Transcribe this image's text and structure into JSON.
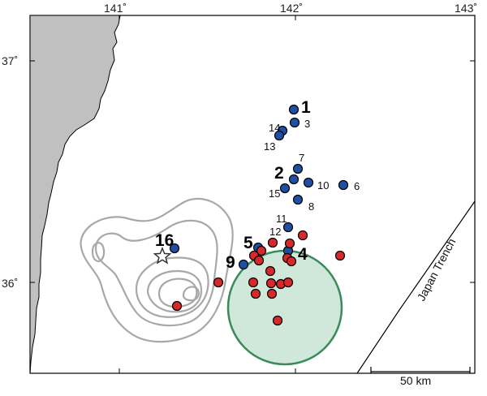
{
  "map": {
    "lon_ticks": [
      "141˚",
      "142˚",
      "143˚"
    ],
    "lat_ticks": [
      "37˚",
      "36˚"
    ],
    "trench_label": "Japan Trench",
    "scale_label": "50 km",
    "colors": {
      "land": "#c0c0c0",
      "blue": "#1f4fa0",
      "red": "#d62a2a",
      "circle_fill": "#cfe8d9",
      "circle_stroke": "#3a8a5a",
      "contour": "#a8a8a8"
    }
  },
  "labels": {
    "l1": "1",
    "l2": "2",
    "l3": "3",
    "l4": "4",
    "l5": "5",
    "l6": "6",
    "l7": "7",
    "l8": "8",
    "l9": "9",
    "l10": "10",
    "l11": "11",
    "l12": "12",
    "l13": "13",
    "l14": "14",
    "l15": "15",
    "l16": "16"
  }
}
